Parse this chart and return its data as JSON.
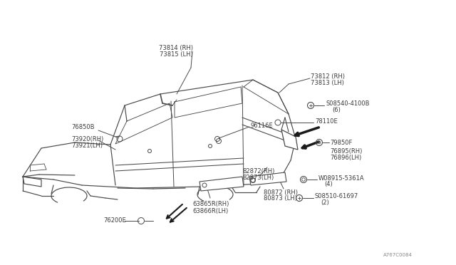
{
  "bg_color": "#ffffff",
  "line_color": "#4a4a4a",
  "text_color": "#3a3a3a",
  "part_number_ref": "A767C0084",
  "labels": {
    "73814_RH": "73814 (RH)",
    "73815_LH": "73815 (LH)",
    "73812_RH": "73812 (RH)",
    "73813_LH": "73813 (LH)",
    "76850B": "76850B",
    "73820_RH": "73920(RH)",
    "73821_LH": "73921(LH)",
    "96116E": "96116E",
    "08540_4100B": "S08540-4100B",
    "08540_qty": "(6)",
    "78110E": "78110E",
    "79850F": "79850F",
    "76895_RH": "76895(RH)",
    "76896_LH": "76896(LH)",
    "82872_RH": "82872(RH)",
    "82873_LH": "82873(LH)",
    "08915_5361A": "W08915-5361A",
    "08915_qty": "(4)",
    "08510_61697": "S08510-61697",
    "08510_qty": "(2)",
    "80872_RH": "80872 (RH)",
    "80873_LH": "80873 (LH)",
    "63865R_RH": "63865R(RH)",
    "63866R_LH": "63866R(LH)",
    "76200E": "76200E"
  },
  "font_size": 6.0,
  "small_font_size": 5.0
}
